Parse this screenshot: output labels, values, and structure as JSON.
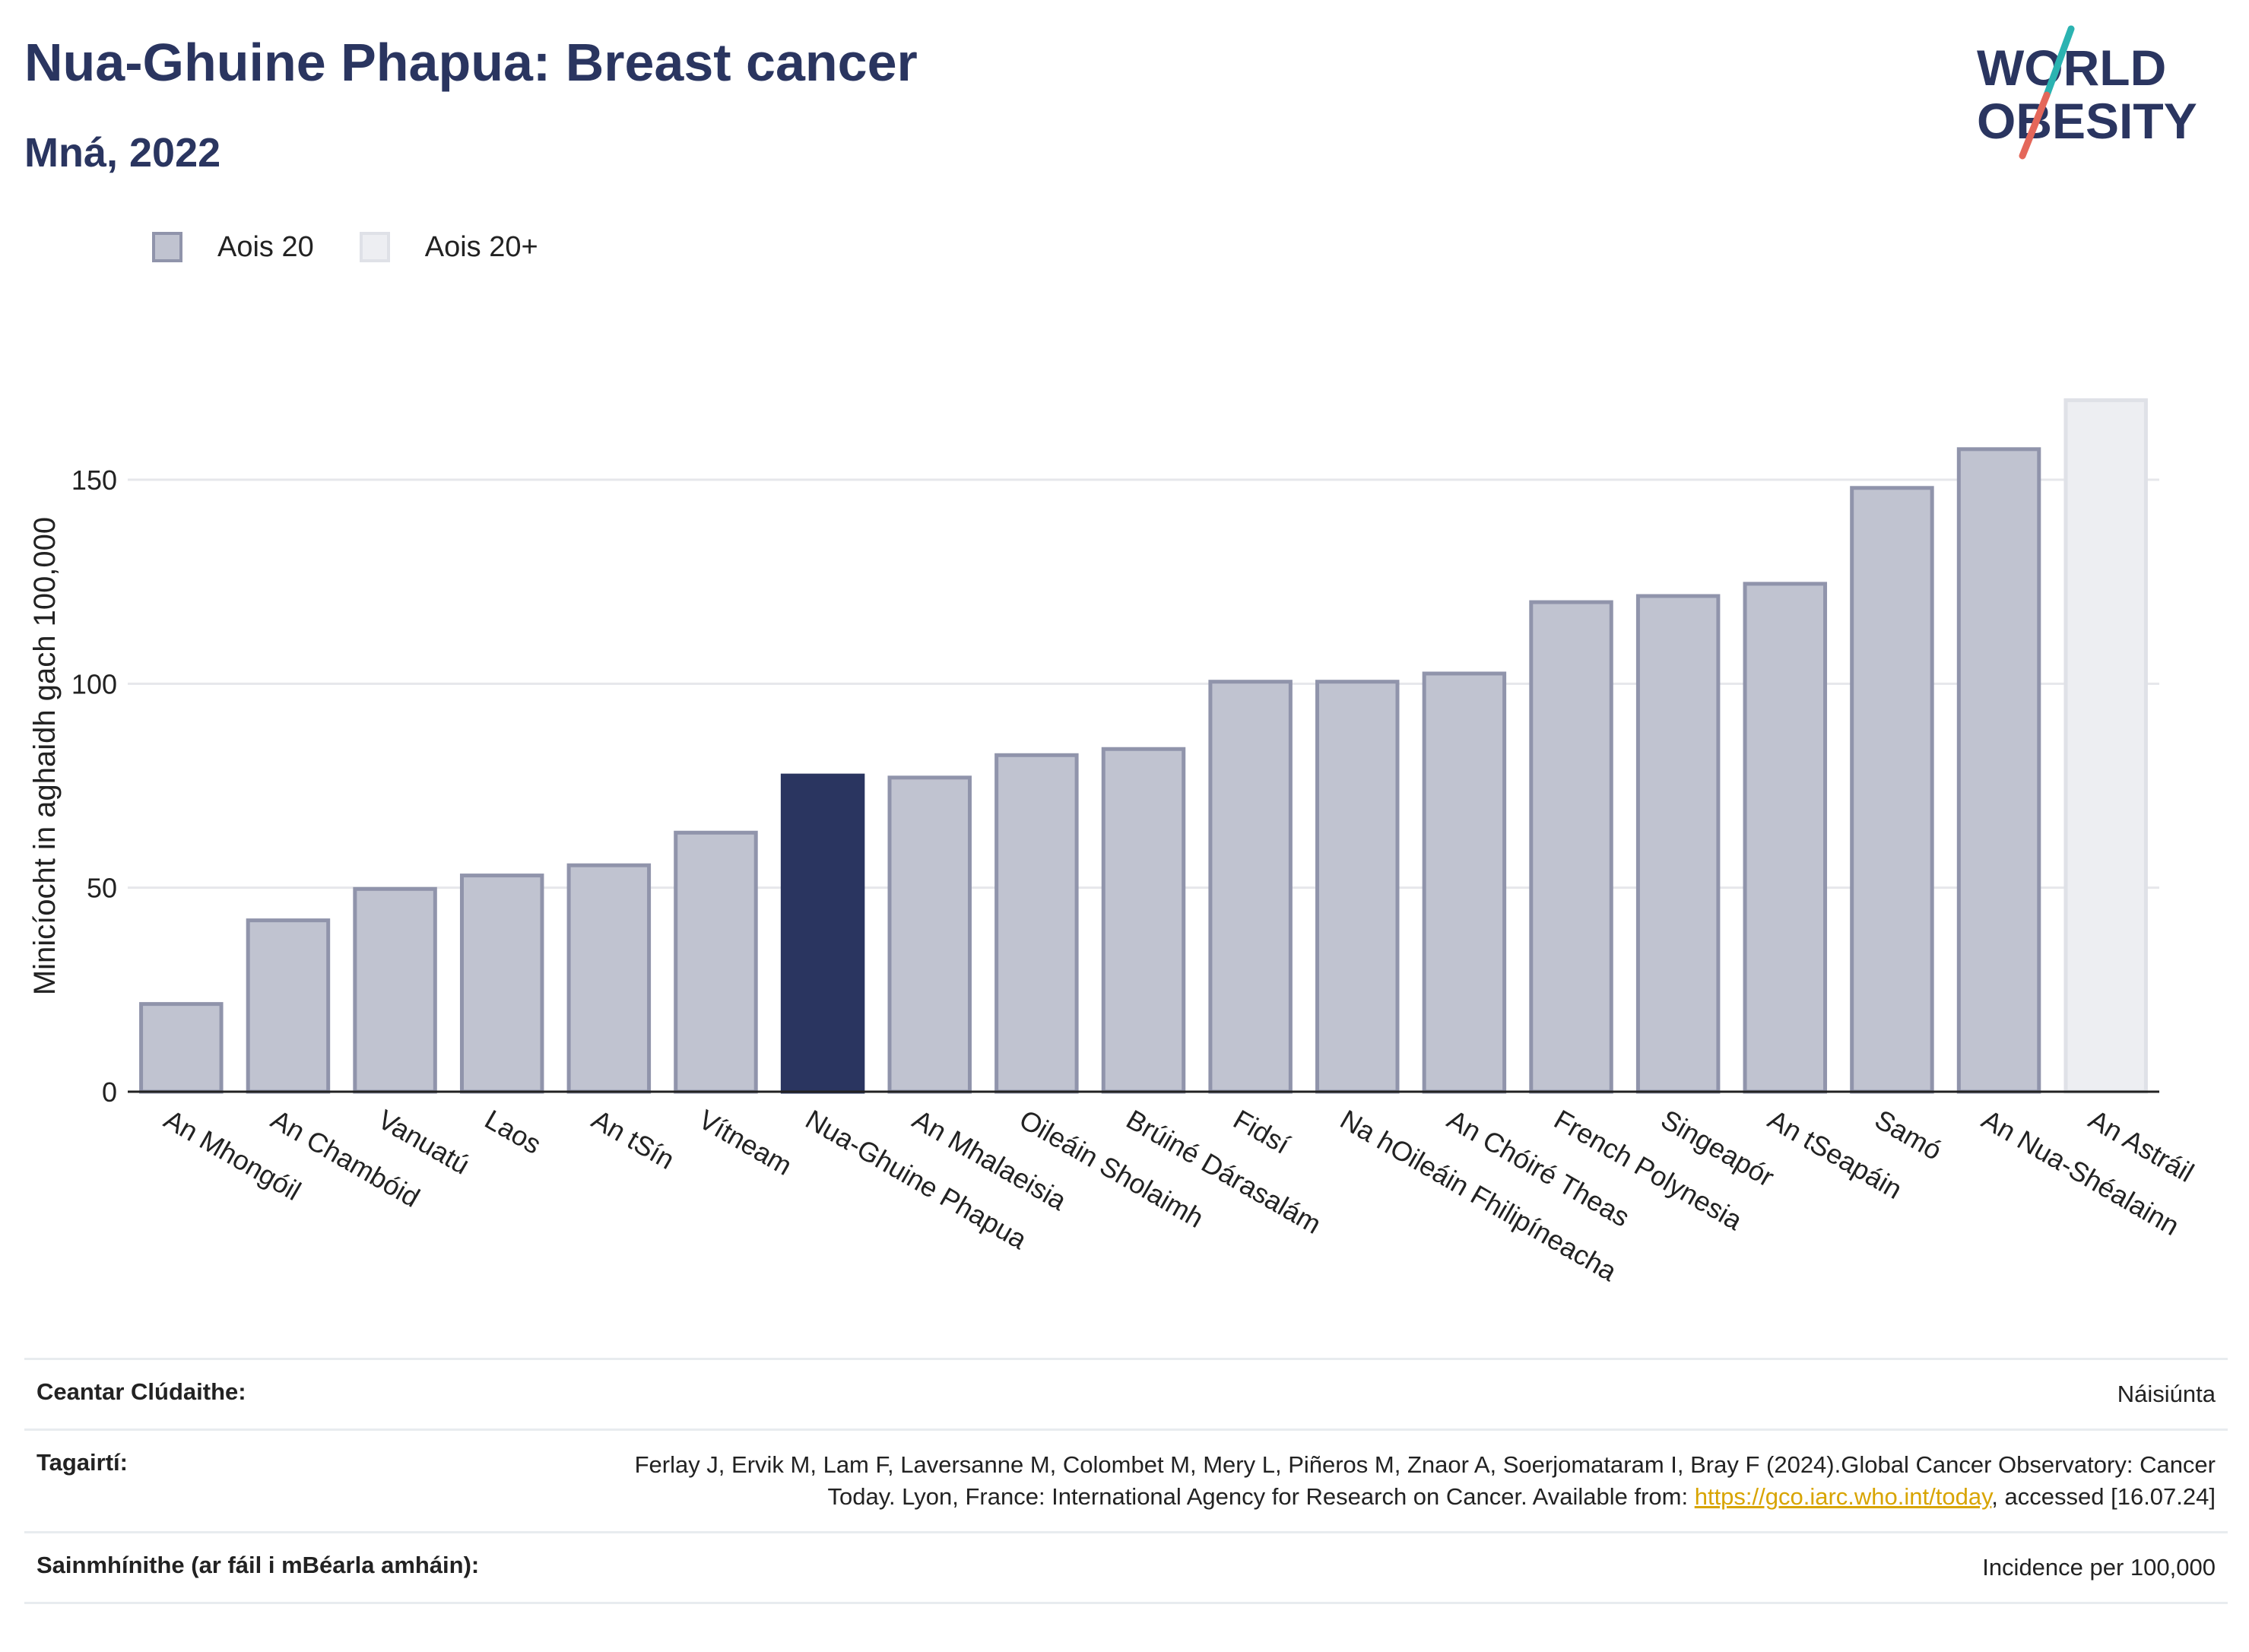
{
  "title": "Nua-Ghuine Phapua: Breast cancer",
  "subtitle": "Mná, 2022",
  "logo": {
    "line1": "WORLD",
    "line2": "OBESITY",
    "colors": {
      "text": "#2a3560",
      "slash_teal": "#2bb3b1",
      "slash_coral": "#e4675a"
    }
  },
  "legend": [
    {
      "label": "Aois 20",
      "color": "#c0c3d0"
    },
    {
      "label": "Aois 20+",
      "color": "#edeef2"
    }
  ],
  "colors": {
    "highlight": "#2a3560",
    "bar": "#c0c3d0",
    "bar_border": "#9094ab",
    "bar_light": "#edeef2",
    "bar_light_border": "#dfe1e7"
  },
  "chart_data": {
    "type": "bar",
    "title": "Nua-Ghuine Phapua: Breast cancer",
    "subtitle": "Mná, 2022",
    "xlabel": "",
    "ylabel": "Minicíocht in aghaidh gach 100,000",
    "ylim": [
      0,
      172
    ],
    "yticks": [
      0,
      50,
      100,
      150
    ],
    "grid": true,
    "legend_position": "top-left",
    "categories": [
      "An Mhongóil",
      "An Chambóid",
      "Vanuatú",
      "Laos",
      "An tSín",
      "Vítneam",
      "Nua-Ghuine Phapua",
      "An Mhalaeisia",
      "Oileáin Sholaimh",
      "Brúiné Dárasalám",
      "Fidsí",
      "Na hOileáin Fhilipíneacha",
      "An Chóiré Theas",
      "French Polynesia",
      "Singeapór",
      "An tSeapáin",
      "Samó",
      "An Nua-Shéalainn",
      "An Astráil"
    ],
    "values": [
      21.5,
      42,
      49.7,
      53,
      55.5,
      63.5,
      77.5,
      77,
      82.5,
      84,
      100.5,
      100.5,
      102.5,
      120,
      121.5,
      124.5,
      148,
      157.5,
      169.5
    ],
    "series_group": [
      "Aois 20",
      "Aois 20",
      "Aois 20",
      "Aois 20",
      "Aois 20",
      "Aois 20",
      "Aois 20",
      "Aois 20",
      "Aois 20",
      "Aois 20",
      "Aois 20",
      "Aois 20",
      "Aois 20",
      "Aois 20",
      "Aois 20",
      "Aois 20",
      "Aois 20",
      "Aois 20",
      "Aois 20+"
    ],
    "highlight": "Nua-Ghuine Phapua"
  },
  "footer": {
    "coverage_label": "Ceantar Clúdaithe:",
    "coverage_value": "Náisiúnta",
    "references_label": "Tagairtí:",
    "references_text": "Ferlay J, Ervik M, Lam F, Laversanne M, Colombet M, Mery L, Piñeros M, Znaor A, Soerjomataram I, Bray F (2024).Global Cancer Observatory: Cancer Today. Lyon, France: International Agency for Research on Cancer. Available from:",
    "references_link": "https://gco.iarc.who.int/today",
    "references_tail": ", accessed [16.07.24]",
    "definitions_label": "Sainmhínithe (ar fáil i mBéarla amháin):",
    "definitions_value": "Incidence per 100,000"
  }
}
